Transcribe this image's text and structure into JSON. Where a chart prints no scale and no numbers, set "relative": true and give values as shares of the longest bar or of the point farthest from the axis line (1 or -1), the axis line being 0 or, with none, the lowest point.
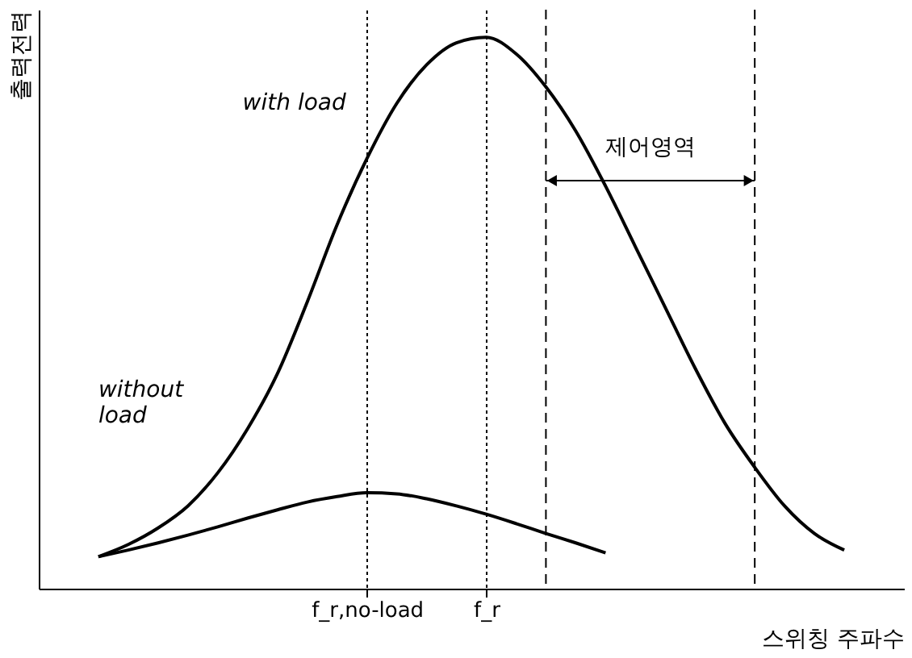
{
  "chart_data": {
    "type": "line",
    "relative": true,
    "xlabel": "스위칭 주파수",
    "ylabel": "출력전력",
    "categories": [
      null,
      null,
      null,
      null,
      null,
      null,
      null,
      null,
      null,
      null,
      "f_r,no-load",
      null,
      null,
      null,
      "f_r",
      null,
      null,
      null,
      null,
      null,
      null,
      null,
      null,
      null,
      null,
      null,
      null,
      null,
      null
    ],
    "series": [
      {
        "color": "#000000",
        "values": [
          null,
          0.058,
          0.08,
          0.11,
          0.15,
          0.21,
          0.29,
          0.39,
          0.52,
          0.66,
          0.78,
          0.88,
          0.95,
          0.99,
          1.0,
          0.97,
          0.91,
          0.83,
          0.73,
          0.62,
          0.51,
          0.4,
          0.3,
          0.22,
          0.15,
          0.1,
          0.07,
          null,
          null
        ]
      },
      {
        "color": "#000000",
        "values": [
          null,
          0.058,
          0.07,
          0.083,
          0.097,
          0.112,
          0.128,
          0.143,
          0.157,
          0.167,
          0.174,
          0.172,
          0.163,
          0.15,
          0.135,
          0.118,
          0.1,
          0.083,
          0.065,
          null,
          null,
          null,
          null,
          null,
          null,
          null,
          null,
          null,
          null
        ]
      }
    ],
    "annotations": [
      "with load",
      "without load",
      "제어영역"
    ],
    "grid": "x",
    "line_style": "solid",
    "marker": "none"
  }
}
